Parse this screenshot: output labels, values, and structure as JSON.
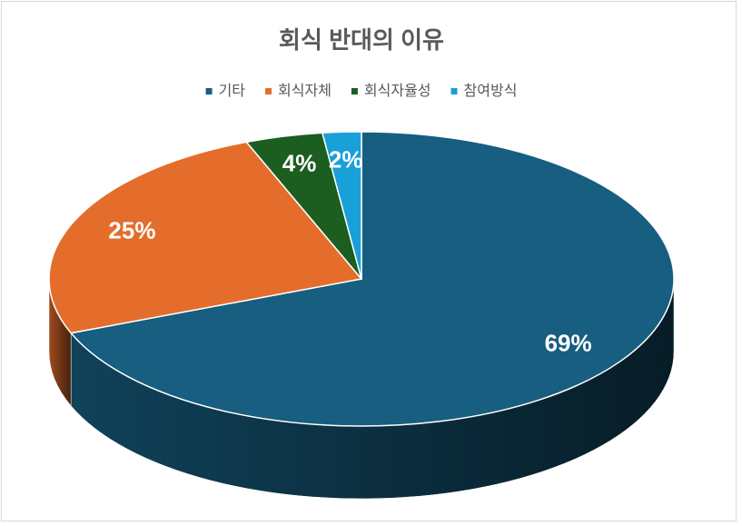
{
  "chart_data": {
    "type": "pie3d",
    "title": "회식 반대의 이유",
    "categories": [
      "기타",
      "회식자체",
      "회식자율성",
      "참여방식"
    ],
    "values": [
      69,
      25,
      4,
      2
    ],
    "value_labels": [
      "69%",
      "25%",
      "4%",
      "2%"
    ],
    "colors": [
      "#175e80",
      "#e46d2c",
      "#1b5e20",
      "#1aa0d8"
    ],
    "legend": "top"
  }
}
